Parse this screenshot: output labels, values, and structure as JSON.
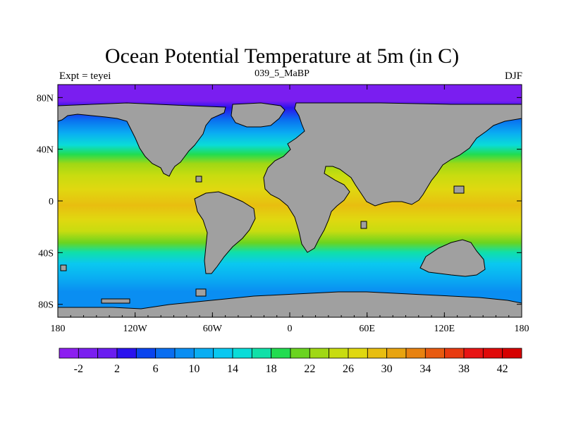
{
  "header": {
    "title": "Ocean Potential Temperature at 5m (in C)",
    "subtitle": "039_5_MaBP",
    "left_label": "Expt = teyei",
    "right_label": "DJF"
  },
  "map": {
    "lon_ticks": [
      "180",
      "120W",
      "60W",
      "0",
      "60E",
      "120E",
      "180"
    ],
    "lat_ticks": [
      "80N",
      "40N",
      "0",
      "40S",
      "80S"
    ],
    "land_color": "#a0a0a0"
  },
  "colorbar": {
    "labels": [
      "-2",
      "2",
      "6",
      "10",
      "14",
      "18",
      "22",
      "26",
      "30",
      "34",
      "38",
      "42"
    ],
    "colors": [
      "#8c1ef0",
      "#7a1ef0",
      "#6a1cf0",
      "#2a12ee",
      "#0a44ee",
      "#0a6ef0",
      "#0a8ef2",
      "#0aaef2",
      "#0ac8f0",
      "#0adcd8",
      "#10e0a8",
      "#22dc50",
      "#6ad420",
      "#a0d814",
      "#c8dc10",
      "#e0d810",
      "#e8be10",
      "#e8a410",
      "#e88210",
      "#e85a10",
      "#e83a10",
      "#e81414",
      "#e00a0a",
      "#d60000"
    ]
  }
}
